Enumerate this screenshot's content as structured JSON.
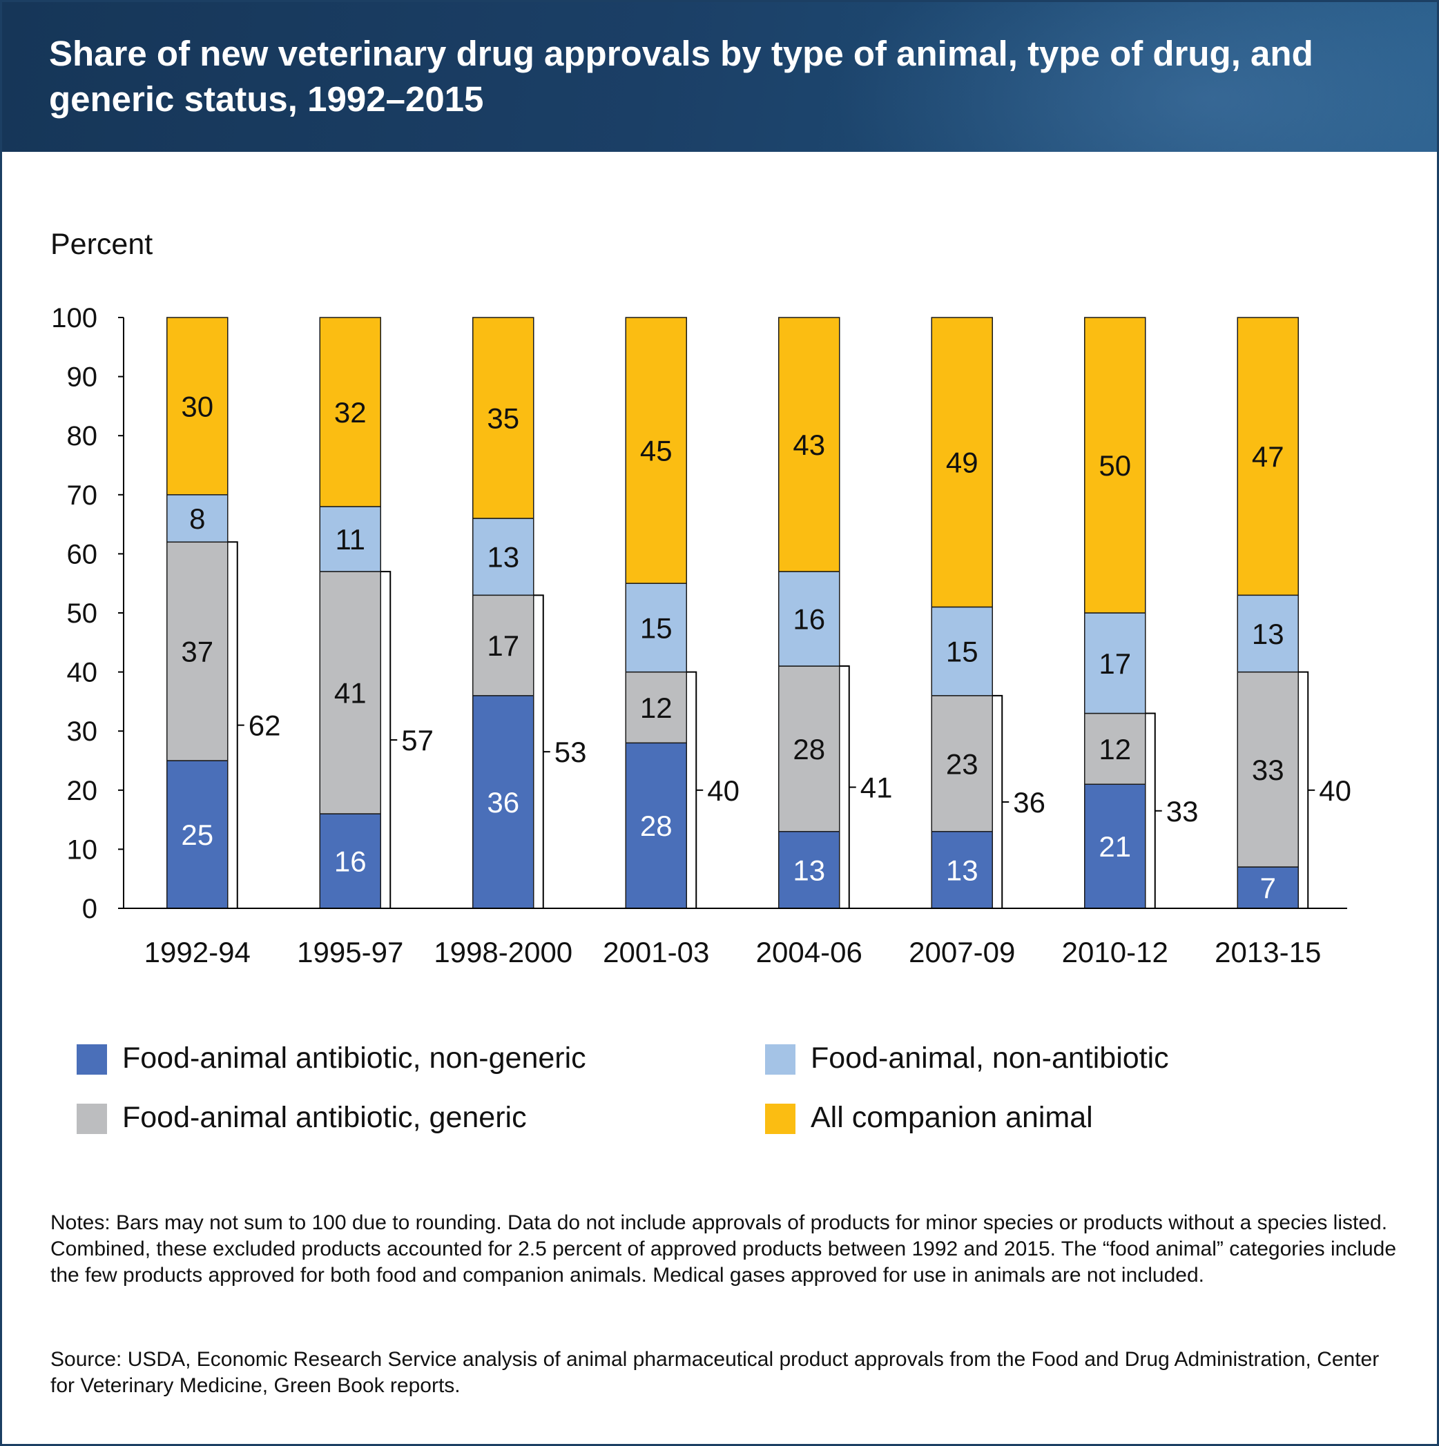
{
  "title": "Share of new veterinary drug approvals by type of animal, type of drug, and generic status, 1992–2015",
  "notes": "Notes: Bars may not sum to 100 due to rounding. Data do not include approvals of products for minor species or products without a species listed. Combined, these excluded products accounted for 2.5 percent of approved products between 1992 and 2015. The “food animal” categories include the few products approved for both food and companion animals. Medical gases approved for use in animals are not included.",
  "source": "Source: USDA, Economic Research Service analysis of animal pharmaceutical product approvals from the Food and Drug Administration, Center for Veterinary Medicine, Green Book reports.",
  "chart_data": {
    "type": "bar",
    "stacked": true,
    "ylabel": "Percent",
    "ylim": [
      0,
      100
    ],
    "yticks": [
      0,
      10,
      20,
      30,
      40,
      50,
      60,
      70,
      80,
      90,
      100
    ],
    "categories": [
      "1992-94",
      "1995-97",
      "1998-2000",
      "2001-03",
      "2004-06",
      "2007-09",
      "2010-12",
      "2013-15"
    ],
    "series": [
      {
        "name": "Food-animal antibiotic, non-generic",
        "color": "#4a6fb9",
        "label_color": "#ffffff",
        "values": [
          25,
          16,
          36,
          28,
          13,
          13,
          21,
          7
        ]
      },
      {
        "name": "Food-animal antibiotic, generic",
        "color": "#bcbdbf",
        "label_color": "#111111",
        "values": [
          37,
          41,
          17,
          12,
          28,
          23,
          12,
          33
        ]
      },
      {
        "name": "Food-animal, non-antibiotic",
        "color": "#a4c3e6",
        "label_color": "#111111",
        "values": [
          8,
          11,
          13,
          15,
          16,
          15,
          17,
          13
        ]
      },
      {
        "name": "All companion animal",
        "color": "#fbbd12",
        "label_color": "#111111",
        "values": [
          30,
          32,
          35,
          45,
          43,
          49,
          50,
          47
        ]
      }
    ],
    "bracket_totals": [
      62,
      57,
      53,
      40,
      41,
      36,
      33,
      40
    ],
    "grid": false,
    "legend_position": "bottom"
  }
}
